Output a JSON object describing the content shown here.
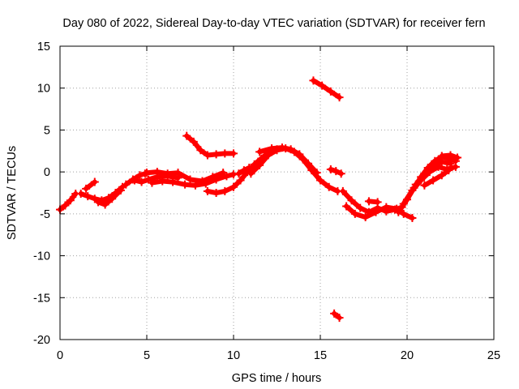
{
  "chart_data": {
    "type": "scatter",
    "title": "Day 080 of 2022, Sidereal Day-to-day VTEC variation (SDTVAR) for receiver fern",
    "xlabel": "GPS time / hours",
    "ylabel": "SDTVAR / TECUs",
    "xlim": [
      0,
      25
    ],
    "ylim": [
      -20,
      15
    ],
    "xticks": [
      0,
      5,
      10,
      15,
      20,
      25
    ],
    "yticks": [
      -20,
      -15,
      -10,
      -5,
      0,
      5,
      10,
      15
    ],
    "grid": true,
    "legend": "none",
    "series_color": "#ff0000",
    "tracks": [
      {
        "name": "track-1",
        "points": [
          [
            0.0,
            -4.5
          ],
          [
            0.3,
            -4.0
          ],
          [
            0.6,
            -3.4
          ],
          [
            0.9,
            -2.6
          ]
        ]
      },
      {
        "name": "track-2",
        "points": [
          [
            1.2,
            -2.6
          ],
          [
            1.6,
            -2.9
          ],
          [
            2.0,
            -3.2
          ],
          [
            2.4,
            -3.4
          ],
          [
            2.8,
            -3.1
          ],
          [
            3.2,
            -2.5
          ],
          [
            3.6,
            -1.8
          ]
        ]
      },
      {
        "name": "track-3",
        "points": [
          [
            1.5,
            -2.0
          ],
          [
            2.0,
            -1.2
          ]
        ]
      },
      {
        "name": "track-4",
        "points": [
          [
            2.2,
            -3.6
          ],
          [
            2.6,
            -3.9
          ],
          [
            3.0,
            -3.2
          ],
          [
            3.5,
            -2.2
          ]
        ]
      },
      {
        "name": "track-5",
        "points": [
          [
            3.8,
            -1.5
          ],
          [
            4.2,
            -0.9
          ],
          [
            4.6,
            -0.4
          ],
          [
            4.9,
            -0.2
          ]
        ]
      },
      {
        "name": "track-6",
        "points": [
          [
            4.3,
            -1.0
          ],
          [
            4.7,
            -1.2
          ],
          [
            5.1,
            -0.9
          ],
          [
            5.6,
            -0.6
          ],
          [
            6.2,
            -0.5
          ],
          [
            6.8,
            -0.7
          ]
        ]
      },
      {
        "name": "track-7",
        "points": [
          [
            5.3,
            -1.3
          ],
          [
            5.9,
            -1.1
          ],
          [
            6.5,
            -1.2
          ],
          [
            7.2,
            -1.5
          ],
          [
            7.8,
            -1.6
          ],
          [
            8.4,
            -1.4
          ],
          [
            9.0,
            -0.9
          ],
          [
            9.6,
            -0.5
          ],
          [
            10.0,
            -0.3
          ]
        ]
      },
      {
        "name": "track-8",
        "points": [
          [
            5.0,
            -0.1
          ],
          [
            5.6,
            0.0
          ],
          [
            6.2,
            -0.2
          ],
          [
            6.8,
            -0.1
          ],
          [
            7.5,
            -0.9
          ],
          [
            8.2,
            -1.1
          ],
          [
            8.8,
            -0.6
          ],
          [
            9.4,
            -0.1
          ]
        ]
      },
      {
        "name": "track-9",
        "points": [
          [
            7.3,
            4.3
          ],
          [
            7.7,
            3.6
          ],
          [
            8.1,
            2.6
          ],
          [
            8.5,
            2.0
          ],
          [
            9.0,
            2.1
          ],
          [
            9.5,
            2.2
          ],
          [
            10.0,
            2.2
          ]
        ]
      },
      {
        "name": "track-10",
        "points": [
          [
            8.5,
            -2.3
          ],
          [
            9.0,
            -2.5
          ],
          [
            9.5,
            -2.3
          ],
          [
            10.0,
            -1.8
          ],
          [
            10.4,
            -1.0
          ],
          [
            10.8,
            0.0
          ],
          [
            11.2,
            0.9
          ],
          [
            11.6,
            1.6
          ],
          [
            12.0,
            2.3
          ],
          [
            12.5,
            2.7
          ]
        ]
      },
      {
        "name": "track-11",
        "points": [
          [
            10.3,
            -0.2
          ],
          [
            10.6,
            0.2
          ],
          [
            10.9,
            0.5
          ]
        ]
      },
      {
        "name": "track-12",
        "points": [
          [
            11.0,
            -0.2
          ],
          [
            11.5,
            0.8
          ],
          [
            12.0,
            2.0
          ],
          [
            12.5,
            2.6
          ],
          [
            13.0,
            2.8
          ],
          [
            13.5,
            2.4
          ],
          [
            14.0,
            1.5
          ],
          [
            14.5,
            0.2
          ],
          [
            15.0,
            -1.0
          ],
          [
            15.5,
            -1.8
          ],
          [
            16.0,
            -2.3
          ]
        ]
      },
      {
        "name": "track-13",
        "points": [
          [
            11.5,
            2.4
          ],
          [
            12.2,
            2.8
          ],
          [
            12.8,
            2.9
          ],
          [
            13.3,
            2.7
          ],
          [
            13.8,
            2.1
          ],
          [
            14.3,
            1.0
          ],
          [
            14.8,
            -0.1
          ]
        ]
      },
      {
        "name": "track-14",
        "points": [
          [
            14.6,
            10.9
          ],
          [
            15.1,
            10.3
          ],
          [
            15.6,
            9.6
          ],
          [
            16.1,
            8.9
          ]
        ]
      },
      {
        "name": "track-15",
        "points": [
          [
            15.6,
            0.3
          ],
          [
            15.9,
            0.1
          ],
          [
            16.2,
            -0.2
          ]
        ]
      },
      {
        "name": "track-16",
        "points": [
          [
            15.8,
            -16.9
          ],
          [
            16.1,
            -17.4
          ]
        ]
      },
      {
        "name": "track-17",
        "points": [
          [
            16.3,
            -2.3
          ],
          [
            16.8,
            -3.4
          ],
          [
            17.3,
            -4.3
          ],
          [
            17.8,
            -4.8
          ],
          [
            18.3,
            -4.3
          ],
          [
            18.8,
            -4.7
          ],
          [
            19.3,
            -4.5
          ],
          [
            19.7,
            -4.2
          ]
        ]
      },
      {
        "name": "track-18",
        "points": [
          [
            16.5,
            -4.1
          ],
          [
            17.0,
            -5.0
          ],
          [
            17.6,
            -5.4
          ],
          [
            18.2,
            -4.8
          ],
          [
            18.8,
            -4.2
          ],
          [
            19.4,
            -4.4
          ],
          [
            19.8,
            -5.0
          ],
          [
            20.3,
            -5.5
          ]
        ]
      },
      {
        "name": "track-19",
        "points": [
          [
            17.8,
            -3.5
          ],
          [
            18.3,
            -3.6
          ]
        ]
      },
      {
        "name": "track-20",
        "points": [
          [
            19.5,
            -4.8
          ],
          [
            20.0,
            -3.3
          ],
          [
            20.4,
            -1.9
          ],
          [
            20.8,
            -0.6
          ],
          [
            21.2,
            0.5
          ],
          [
            21.6,
            1.3
          ],
          [
            22.0,
            1.8
          ],
          [
            22.4,
            1.6
          ],
          [
            22.8,
            1.3
          ]
        ]
      },
      {
        "name": "track-21",
        "points": [
          [
            19.8,
            -3.8
          ],
          [
            20.3,
            -2.2
          ],
          [
            20.8,
            -1.0
          ],
          [
            21.3,
            0.0
          ],
          [
            21.8,
            0.6
          ],
          [
            22.3,
            0.3
          ],
          [
            22.8,
            0.6
          ]
        ]
      },
      {
        "name": "track-22",
        "points": [
          [
            20.5,
            -1.5
          ],
          [
            21.0,
            -0.4
          ],
          [
            21.5,
            0.7
          ],
          [
            22.0,
            1.2
          ],
          [
            22.5,
            1.0
          ]
        ]
      },
      {
        "name": "track-23",
        "points": [
          [
            21.0,
            -1.6
          ],
          [
            21.5,
            -1.0
          ],
          [
            22.0,
            -0.4
          ],
          [
            22.4,
            0.2
          ]
        ]
      },
      {
        "name": "track-24",
        "points": [
          [
            22.0,
            1.9
          ],
          [
            22.5,
            2.0
          ],
          [
            22.9,
            1.7
          ]
        ]
      }
    ]
  }
}
